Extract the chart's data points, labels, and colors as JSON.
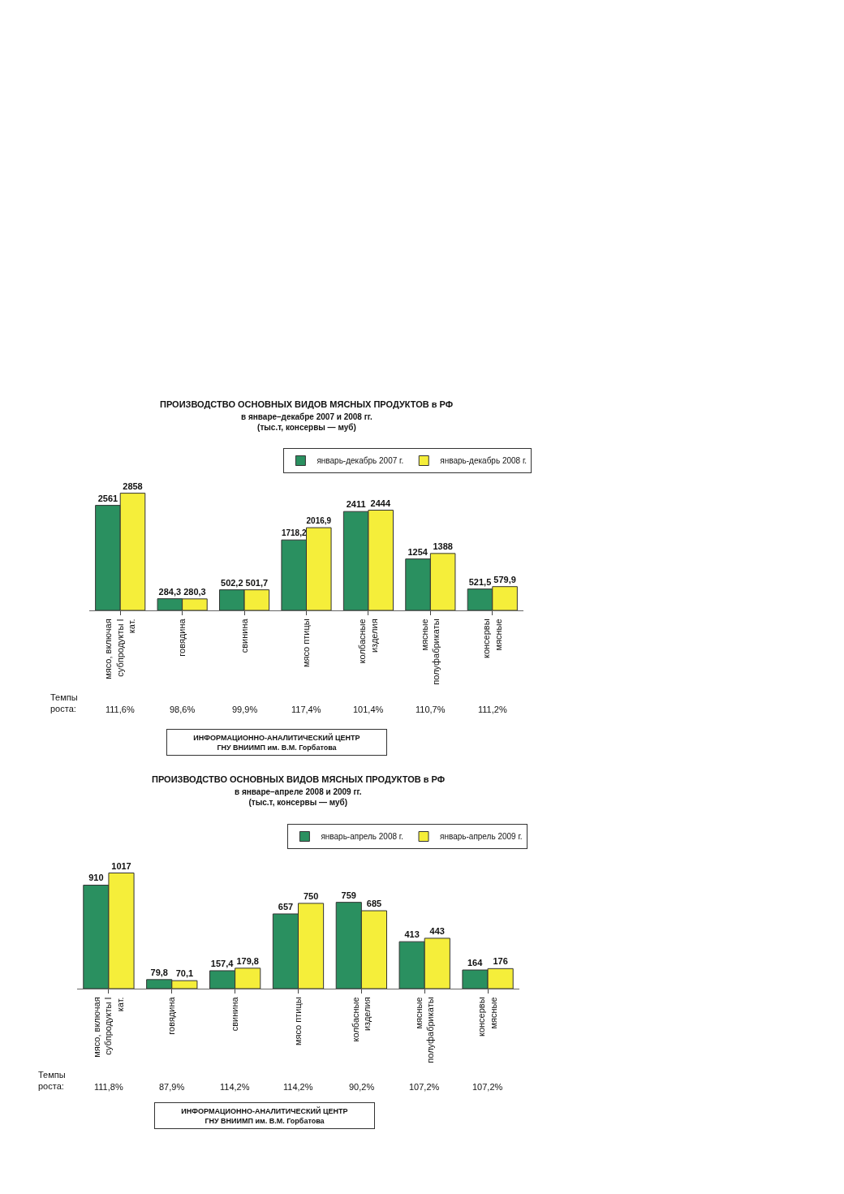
{
  "chart_data": [
    {
      "type": "bar",
      "title": "ПРОИЗВОДСТВО ОСНОВНЫХ ВИДОВ МЯСНЫХ ПРОДУКТОВ в РФ",
      "subtitle": "в январе–декабре 2007 и 2008 гг.\n(тыс.т, консервы — муб)",
      "categories": [
        "мясо, включая субпродукты I кат.",
        "говядина",
        "свинина",
        "мясо птицы",
        "колбасные изделия",
        "мясные полуфабрикаты",
        "консервы мясные"
      ],
      "series": [
        {
          "name": "январь-декабрь 2007 г.",
          "color": "#2a9060",
          "values": [
            2561,
            284.3,
            502.2,
            1718.2,
            2411,
            1254,
            521.5
          ],
          "value_labels": [
            "2561",
            "284,3",
            "502,2",
            "1718,2",
            "2411",
            "1254",
            "521,5"
          ]
        },
        {
          "name": "январь-декабрь 2008 г.",
          "color": "#f5ee3a",
          "values": [
            2858,
            280.3,
            501.7,
            2016.9,
            2444,
            1388,
            579.9
          ],
          "value_labels": [
            "2858",
            "280,3",
            "501,7",
            "2016,9",
            "2444",
            "1388",
            "579,9"
          ]
        }
      ],
      "annotations": [
        "Темпы\nроста:",
        "111,6%",
        "98,6%",
        "99,9%",
        "117,4%",
        "101,4%",
        "110,7%",
        "111,2%",
        "ИНФОРМАЦИОННО-АНАЛИТИЧЕСКИЙ ЦЕНТР\nГНУ ВНИИМП им. В.М. Горбатова"
      ],
      "legend": "top right"
    },
    {
      "type": "bar",
      "title": "ПРОИЗВОДСТВО ОСНОВНЫХ ВИДОВ МЯСНЫХ ПРОДУКТОВ в РФ",
      "subtitle": "в январе–апреле 2008 и 2009 гг.\n(тыс.т, консервы — муб)",
      "categories": [
        "мясо, включая субпродукты I кат.",
        "говядина",
        "свинина",
        "мясо птицы",
        "колбасные изделия",
        "мясные полуфабрикаты",
        "консервы мясные"
      ],
      "series": [
        {
          "name": "январь-апрель 2008 г.",
          "color": "#2a9060",
          "values": [
            910,
            79.8,
            157.4,
            657,
            759,
            413,
            164
          ],
          "value_labels": [
            "910",
            "79,8",
            "157,4",
            "657",
            "759",
            "413",
            "164"
          ]
        },
        {
          "name": "январь-апрель 2009 г.",
          "color": "#f5ee3a",
          "values": [
            1017,
            70.1,
            179.8,
            750,
            685,
            443,
            176
          ],
          "value_labels": [
            "1017",
            "70,1",
            "179,8",
            "750",
            "685",
            "443",
            "176"
          ]
        }
      ],
      "annotations": [
        "Темпы\nроста:",
        "111,8%",
        "87,9%",
        "114,2%",
        "114,2%",
        "90,2%",
        "107,2%",
        "107,2%",
        "ИНФОРМАЦИОННО-АНАЛИТИЧЕСКИЙ ЦЕНТР\nГНУ ВНИИМП им. В.М. Горбатова"
      ],
      "legend": "top right"
    }
  ]
}
